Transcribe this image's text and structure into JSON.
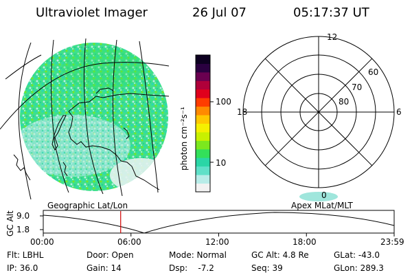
{
  "header": {
    "title": "Ultraviolet Imager",
    "date": "26 Jul 07",
    "time": "05:17:37 UT"
  },
  "colorbar": {
    "unit_label": "photon cm⁻²s⁻¹",
    "ticks": [
      "100",
      "10"
    ],
    "colors": [
      "#f2f2f2",
      "#b8ece8",
      "#5fe0c8",
      "#2ad6a6",
      "#33e05a",
      "#7ce81e",
      "#c8f000",
      "#f5f000",
      "#ffc800",
      "#ff8a00",
      "#ff3c00",
      "#e0001c",
      "#b0003a",
      "#6a0050",
      "#2a0040",
      "#0d0020"
    ]
  },
  "polar": {
    "mlt_labels": {
      "top": "12",
      "left": "18",
      "right": "6",
      "bottom": "0"
    },
    "lat_labels": [
      "60",
      "70",
      "80"
    ]
  },
  "timeline": {
    "left_label": "Geographic Lat/Lon",
    "right_label": "Apex MLat/MLT",
    "y_axis_label": "GC Alt",
    "y_ticks": [
      "9.0",
      "1.8"
    ],
    "x_ticks": [
      "00:00",
      "06:00",
      "12:00",
      "18:00",
      "23:59"
    ],
    "current_time_fraction": 0.2206,
    "curve_color": "#000000",
    "marker_color": "#d00000"
  },
  "info": {
    "flt": "Flt: LBHL",
    "ip": "IP: 36.0",
    "door": "Door: Open",
    "gain": "Gain: 14",
    "mode": "Mode: Normal",
    "dsp": "Dsp:    -7.2",
    "gc_alt": "GC Alt: 4.8 Re",
    "seq": "Seq: 39",
    "glat": "GLat: -43.0",
    "glon": "GLon: 289.3"
  }
}
